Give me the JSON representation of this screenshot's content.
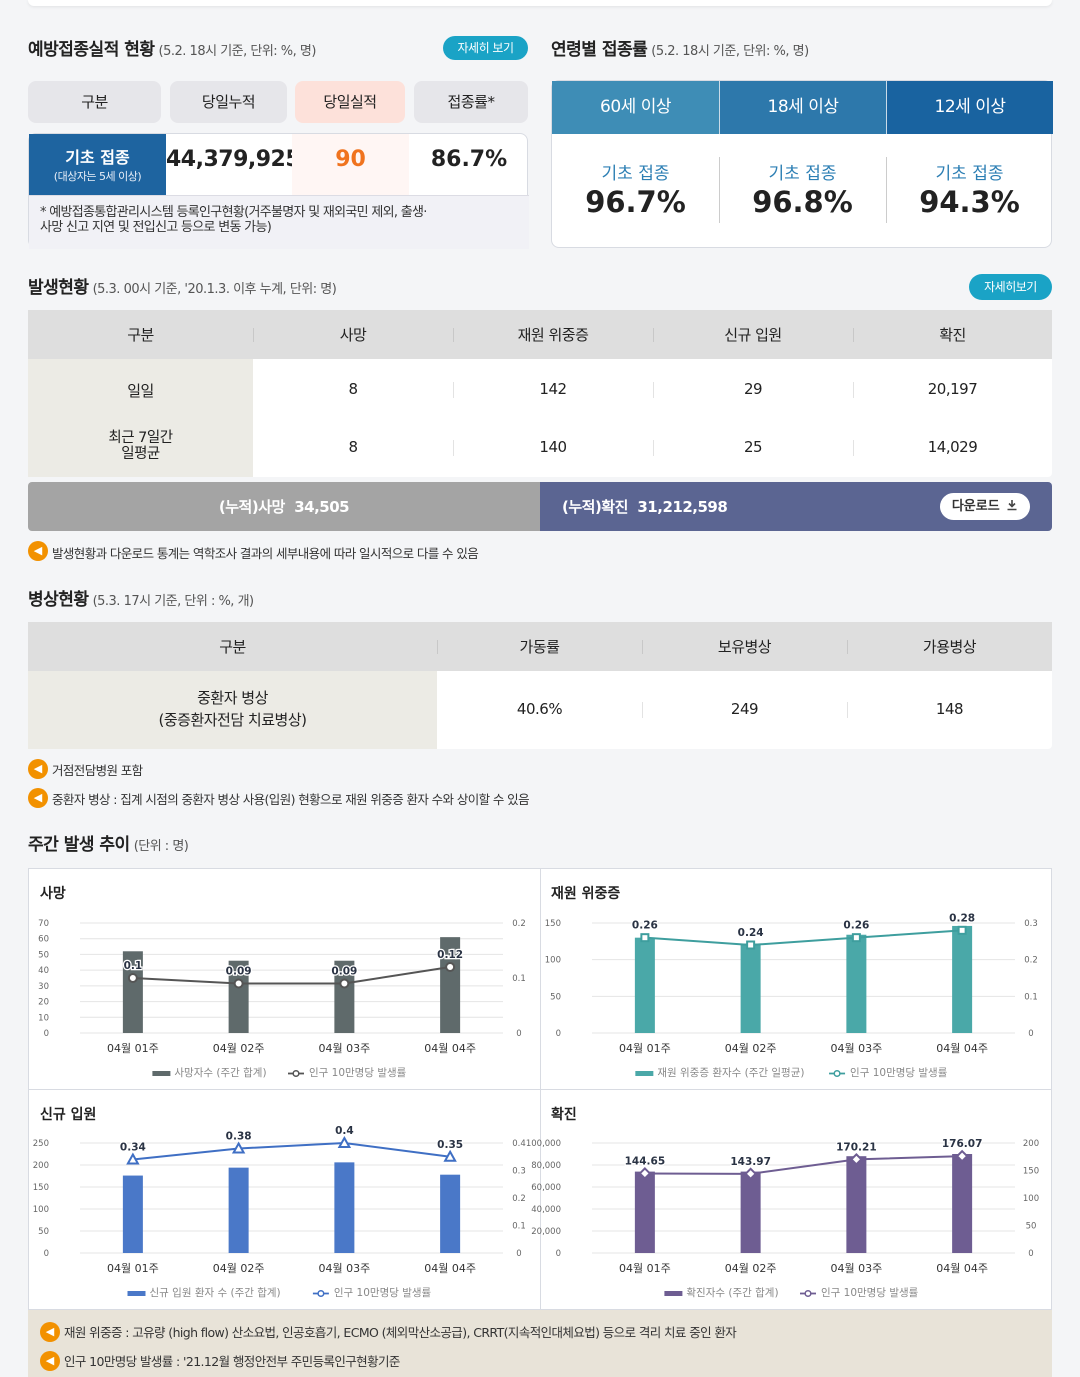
{
  "vaccine": {
    "title": "예방접종실적 현황",
    "sub": "(5.2. 18시 기준, 단위: %, 명)",
    "detail_btn": "자세히 보기",
    "headers": [
      "구분",
      "당일누적",
      "당일실적",
      "접종률*"
    ],
    "row_label": "기초 접종",
    "row_sublabel": "(대상자는 5세 이상)",
    "cumulative": "44,379,925",
    "daily": "90",
    "rate": "86.7%",
    "footnote_l1": "* 예방접종통합관리시스템 등록인구현황(거주불명자 및 재외국민 제외, 출생·",
    "footnote_l2": "사망 신고 지연 및 전입신고 등으로 변동 가능)"
  },
  "age": {
    "title": "연령별 접종률",
    "sub": "(5.2. 18시 기준, 단위: %, 명)",
    "tabs": [
      "60세 이상",
      "18세 이상",
      "12세 이상"
    ],
    "items": [
      {
        "label": "기초 접종",
        "value": "96.7%"
      },
      {
        "label": "기초 접종",
        "value": "96.8%"
      },
      {
        "label": "기초 접종",
        "value": "94.3%"
      }
    ]
  },
  "outbreak": {
    "title": "발생현황",
    "sub": "(5.3. 00시 기준, '20.1.3. 이후 누계, 단위: 명)",
    "detail_btn": "자세히보기",
    "headers": [
      "구분",
      "사망",
      "재원 위중증",
      "신규 입원",
      "확진"
    ],
    "row1": {
      "label": "일일",
      "death": "8",
      "severe": "142",
      "admit": "29",
      "confirmed": "20,197"
    },
    "row2": {
      "label_l1": "최근 7일간",
      "label_l2": "일평균",
      "death": "8",
      "severe": "140",
      "admit": "25",
      "confirmed": "14,029"
    },
    "cum_death_label": "(누적)사망",
    "cum_death": "34,505",
    "cum_conf_label": "(누적)확진",
    "cum_conf": "31,212,598",
    "download": "다운로드",
    "note": "발생현황과 다운로드 통계는 역학조사 결과의 세부내용에 따라 일시적으로 다를 수 있음"
  },
  "beds": {
    "title": "병상현황",
    "sub": "(5.3. 17시 기준, 단위 : %, 개)",
    "headers": [
      "구분",
      "가동률",
      "보유병상",
      "가용병상"
    ],
    "row_l1": "중환자 병상",
    "row_l2": "(중증환자전담 치료병상)",
    "rate": "40.6%",
    "owned": "249",
    "available": "148",
    "note1": "거점전담병원 포함",
    "note2": "중환자 병상 : 집계 시점의 중환자 병상 사용(입원) 현황으로 재원 위중증 환자 수와 상이할 수 있음"
  },
  "weekly": {
    "title": "주간 발생 추이",
    "sub": "(단위 : 명)",
    "note1": "재원 위중증 : 고유량 (high flow) 산소요법, 인공호흡기, ECMO (체외막산소공급), CRRT(지속적인대체요법) 등으로 격리 치료 중인 환자",
    "note2": "인구 10만명당 발생률 : '21.12월 행정안전부 주민등록인구현황기준"
  },
  "chart_data": [
    {
      "type": "bar",
      "title": "사망",
      "categories": [
        "04월 01주",
        "04월 02주",
        "04월 03주",
        "04월 04주"
      ],
      "series": [
        {
          "name": "사망자수 (주간 합계)",
          "type": "bar",
          "values": [
            52,
            46,
            46,
            61
          ]
        },
        {
          "name": "인구 10만명당 발생률",
          "type": "line",
          "axis": "right",
          "values": [
            0.1,
            0.09,
            0.09,
            0.12
          ]
        }
      ],
      "left_ticks": [
        "70",
        "60",
        "50",
        "40",
        "30",
        "20",
        "10",
        "0"
      ],
      "right_ticks": [
        "0.2",
        "0.1",
        "0"
      ],
      "ylim": [
        0,
        70
      ],
      "y2lim": [
        0,
        0.2
      ],
      "bar_color": "#5f6a6b",
      "line_color": "#555555",
      "marker": "circle"
    },
    {
      "type": "bar",
      "title": "재원 위중증",
      "categories": [
        "04월 01주",
        "04월 02주",
        "04월 03주",
        "04월 04주"
      ],
      "series": [
        {
          "name": "재원 위중증 환자수 (주간 일평균)",
          "type": "bar",
          "values": [
            130,
            122,
            134,
            146
          ]
        },
        {
          "name": "인구 10만명당 발생률",
          "type": "line",
          "axis": "right",
          "values": [
            0.26,
            0.24,
            0.26,
            0.28
          ]
        }
      ],
      "left_ticks": [
        "150",
        "100",
        "50",
        "0"
      ],
      "right_ticks": [
        "0.3",
        "0.2",
        "0.1",
        "0"
      ],
      "ylim": [
        0,
        150
      ],
      "y2lim": [
        0,
        0.3
      ],
      "bar_color": "#4aa8a8",
      "line_color": "#3e9e9e",
      "marker": "square"
    },
    {
      "type": "bar",
      "title": "신규 입원",
      "categories": [
        "04월 01주",
        "04월 02주",
        "04월 03주",
        "04월 04주"
      ],
      "series": [
        {
          "name": "신규 입원 환자 수 (주간 합계)",
          "type": "bar",
          "values": [
            176,
            194,
            206,
            178
          ]
        },
        {
          "name": "인구 10만명당 발생률",
          "type": "line",
          "axis": "right",
          "values": [
            0.34,
            0.38,
            0.4,
            0.35
          ]
        }
      ],
      "left_ticks": [
        "250",
        "200",
        "150",
        "100",
        "50",
        "0"
      ],
      "right_ticks": [
        "0.4",
        "0.3",
        "0.2",
        "0.1",
        "0"
      ],
      "ylim": [
        0,
        250
      ],
      "y2lim": [
        0,
        0.4
      ],
      "bar_color": "#4a78c8",
      "line_color": "#3f6fc4",
      "marker": "triangle"
    },
    {
      "type": "bar",
      "title": "확진",
      "categories": [
        "04월 01주",
        "04월 02주",
        "04월 03주",
        "04월 04주"
      ],
      "series": [
        {
          "name": "확진자수 (주간 합계)",
          "type": "bar",
          "values": [
            74000,
            74000,
            88000,
            90000
          ]
        },
        {
          "name": "인구 10만명당 발생률",
          "type": "line",
          "axis": "right",
          "values": [
            144.65,
            143.97,
            170.21,
            176.07
          ]
        }
      ],
      "left_ticks": [
        "100,000",
        "80,000",
        "60,000",
        "40,000",
        "20,000",
        "0"
      ],
      "right_ticks": [
        "200",
        "150",
        "100",
        "50",
        "0"
      ],
      "ylim": [
        0,
        100000
      ],
      "y2lim": [
        0,
        200
      ],
      "bar_color": "#6e5d92",
      "line_color": "#6e5d92",
      "marker": "diamond"
    }
  ]
}
